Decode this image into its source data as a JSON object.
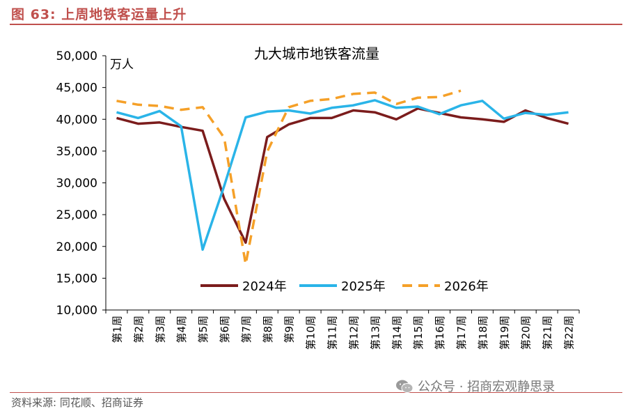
{
  "figure": {
    "label": "图 63:",
    "heading": "上周地铁客运量上升",
    "source": "资料来源: 同花顺、招商证券",
    "watermark": "公众号 · 招商宏观静思录",
    "watermark_icon": "wechat-icon"
  },
  "chart_data": {
    "type": "line",
    "title": "九大城市地铁客流量",
    "ylabel": "万人",
    "xlabel": "",
    "ylim": [
      10000,
      50000
    ],
    "yticks": [
      10000,
      15000,
      20000,
      25000,
      30000,
      35000,
      40000,
      45000,
      50000
    ],
    "ytick_labels": [
      "10,000",
      "15,000",
      "20,000",
      "25,000",
      "30,000",
      "35,000",
      "40,000",
      "45,000",
      "50,000"
    ],
    "categories": [
      "第1周",
      "第2周",
      "第3周",
      "第4周",
      "第5周",
      "第6周",
      "第7周",
      "第8周",
      "第9周",
      "第10周",
      "第11周",
      "第12周",
      "第13周",
      "第14周",
      "第15周",
      "第16周",
      "第17周",
      "第18周",
      "第19周",
      "第20周",
      "第21周",
      "第22周"
    ],
    "grid": false,
    "legend_position": "bottom-center",
    "series": [
      {
        "name": "2024年",
        "color": "#7b1c1c",
        "style": "solid",
        "values": [
          40200,
          39300,
          39500,
          38800,
          38200,
          27500,
          20600,
          37200,
          39200,
          40200,
          40200,
          41400,
          41100,
          40000,
          41700,
          41000,
          40300,
          40000,
          39600,
          41400,
          40200,
          39300
        ]
      },
      {
        "name": "2025年",
        "color": "#2ab4e8",
        "style": "solid",
        "values": [
          41100,
          40200,
          41300,
          38900,
          19500,
          29500,
          40300,
          41200,
          41400,
          40900,
          41800,
          42200,
          43000,
          41800,
          42000,
          40800,
          42200,
          42900,
          40100,
          41000,
          40700,
          41100
        ]
      },
      {
        "name": "2026年",
        "color": "#f5a028",
        "style": "dashed",
        "values": [
          42900,
          42300,
          42100,
          41500,
          41900,
          37100,
          17200,
          34900,
          41900,
          42900,
          43200,
          44000,
          44200,
          42400,
          43400,
          43500,
          44500,
          null,
          null,
          null,
          null,
          null
        ]
      }
    ]
  }
}
